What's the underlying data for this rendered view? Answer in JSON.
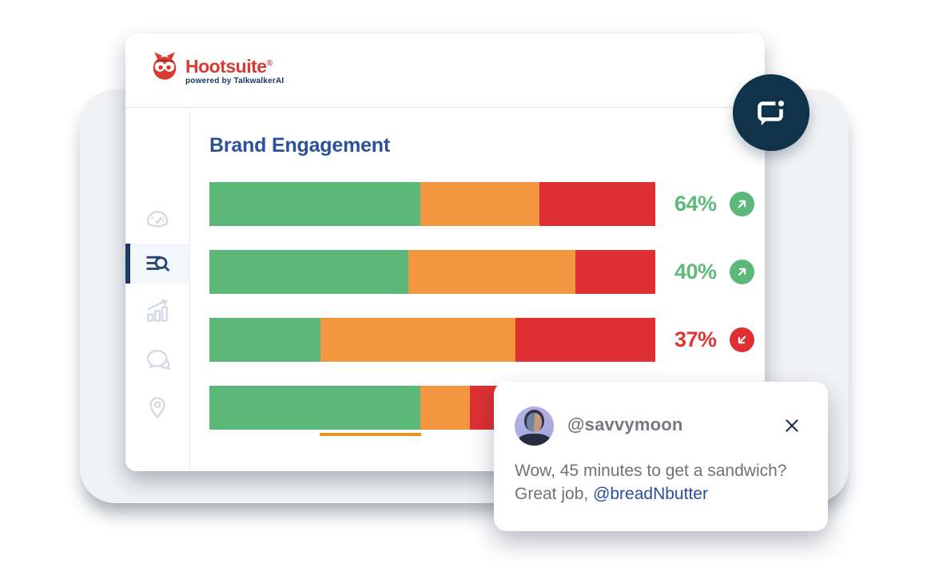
{
  "brand": {
    "name": "Hootsuite",
    "registered_mark": "®",
    "tagline": "powered by TalkwalkerAI",
    "brand_red": "#d73b32",
    "navy": "#17345f"
  },
  "sidebar": {
    "active_indicator_color": "#1d3a66",
    "active_icon_color": "#24476f",
    "inactive_icon_color": "#d5dbe5",
    "items": [
      {
        "id": "dashboard",
        "icon": "gauge-icon",
        "active": false
      },
      {
        "id": "listening",
        "icon": "search-list-icon",
        "active": true
      },
      {
        "id": "analytics",
        "icon": "bar-chart-icon",
        "active": false
      },
      {
        "id": "messages",
        "icon": "chat-bubbles-icon",
        "active": false
      },
      {
        "id": "locations",
        "icon": "location-pin-icon",
        "active": false
      }
    ]
  },
  "main": {
    "title": "Brand Engagement",
    "title_color": "#2b5198"
  },
  "chart_data": {
    "type": "bar",
    "orientation": "horizontal",
    "stacked": true,
    "title": "Brand Engagement",
    "segment_names": [
      "green",
      "orange",
      "red"
    ],
    "segment_colors": [
      "#5bb878",
      "#f2963f",
      "#de3033"
    ],
    "value_up_color": "#5fb97c",
    "value_down_color": "#e13434",
    "trend_up_color": "#5cb878",
    "trend_down_color": "#e02f33",
    "bars": [
      {
        "segments_pct": [
          47.3,
          26.8,
          25.9
        ],
        "value_label": "64%",
        "trend": "up"
      },
      {
        "segments_pct": [
          44.6,
          37.5,
          17.9
        ],
        "value_label": "40%",
        "trend": "up"
      },
      {
        "segments_pct": [
          24.9,
          43.7,
          31.4
        ],
        "value_label": "37%",
        "trend": "down"
      },
      {
        "segments_pct": [
          47.3,
          11.1,
          41.6
        ],
        "value_label": "",
        "trend": "none"
      }
    ]
  },
  "badge": {
    "icon": "chat-notification-icon",
    "background": "#10334a"
  },
  "notification": {
    "username": "@savvymoon",
    "message": "Wow, 45 minutes to get a sandwich?",
    "message_line2_prefix": "Great job, ",
    "mention": "@breadNbutter",
    "mention_color": "#2b4d9b"
  }
}
